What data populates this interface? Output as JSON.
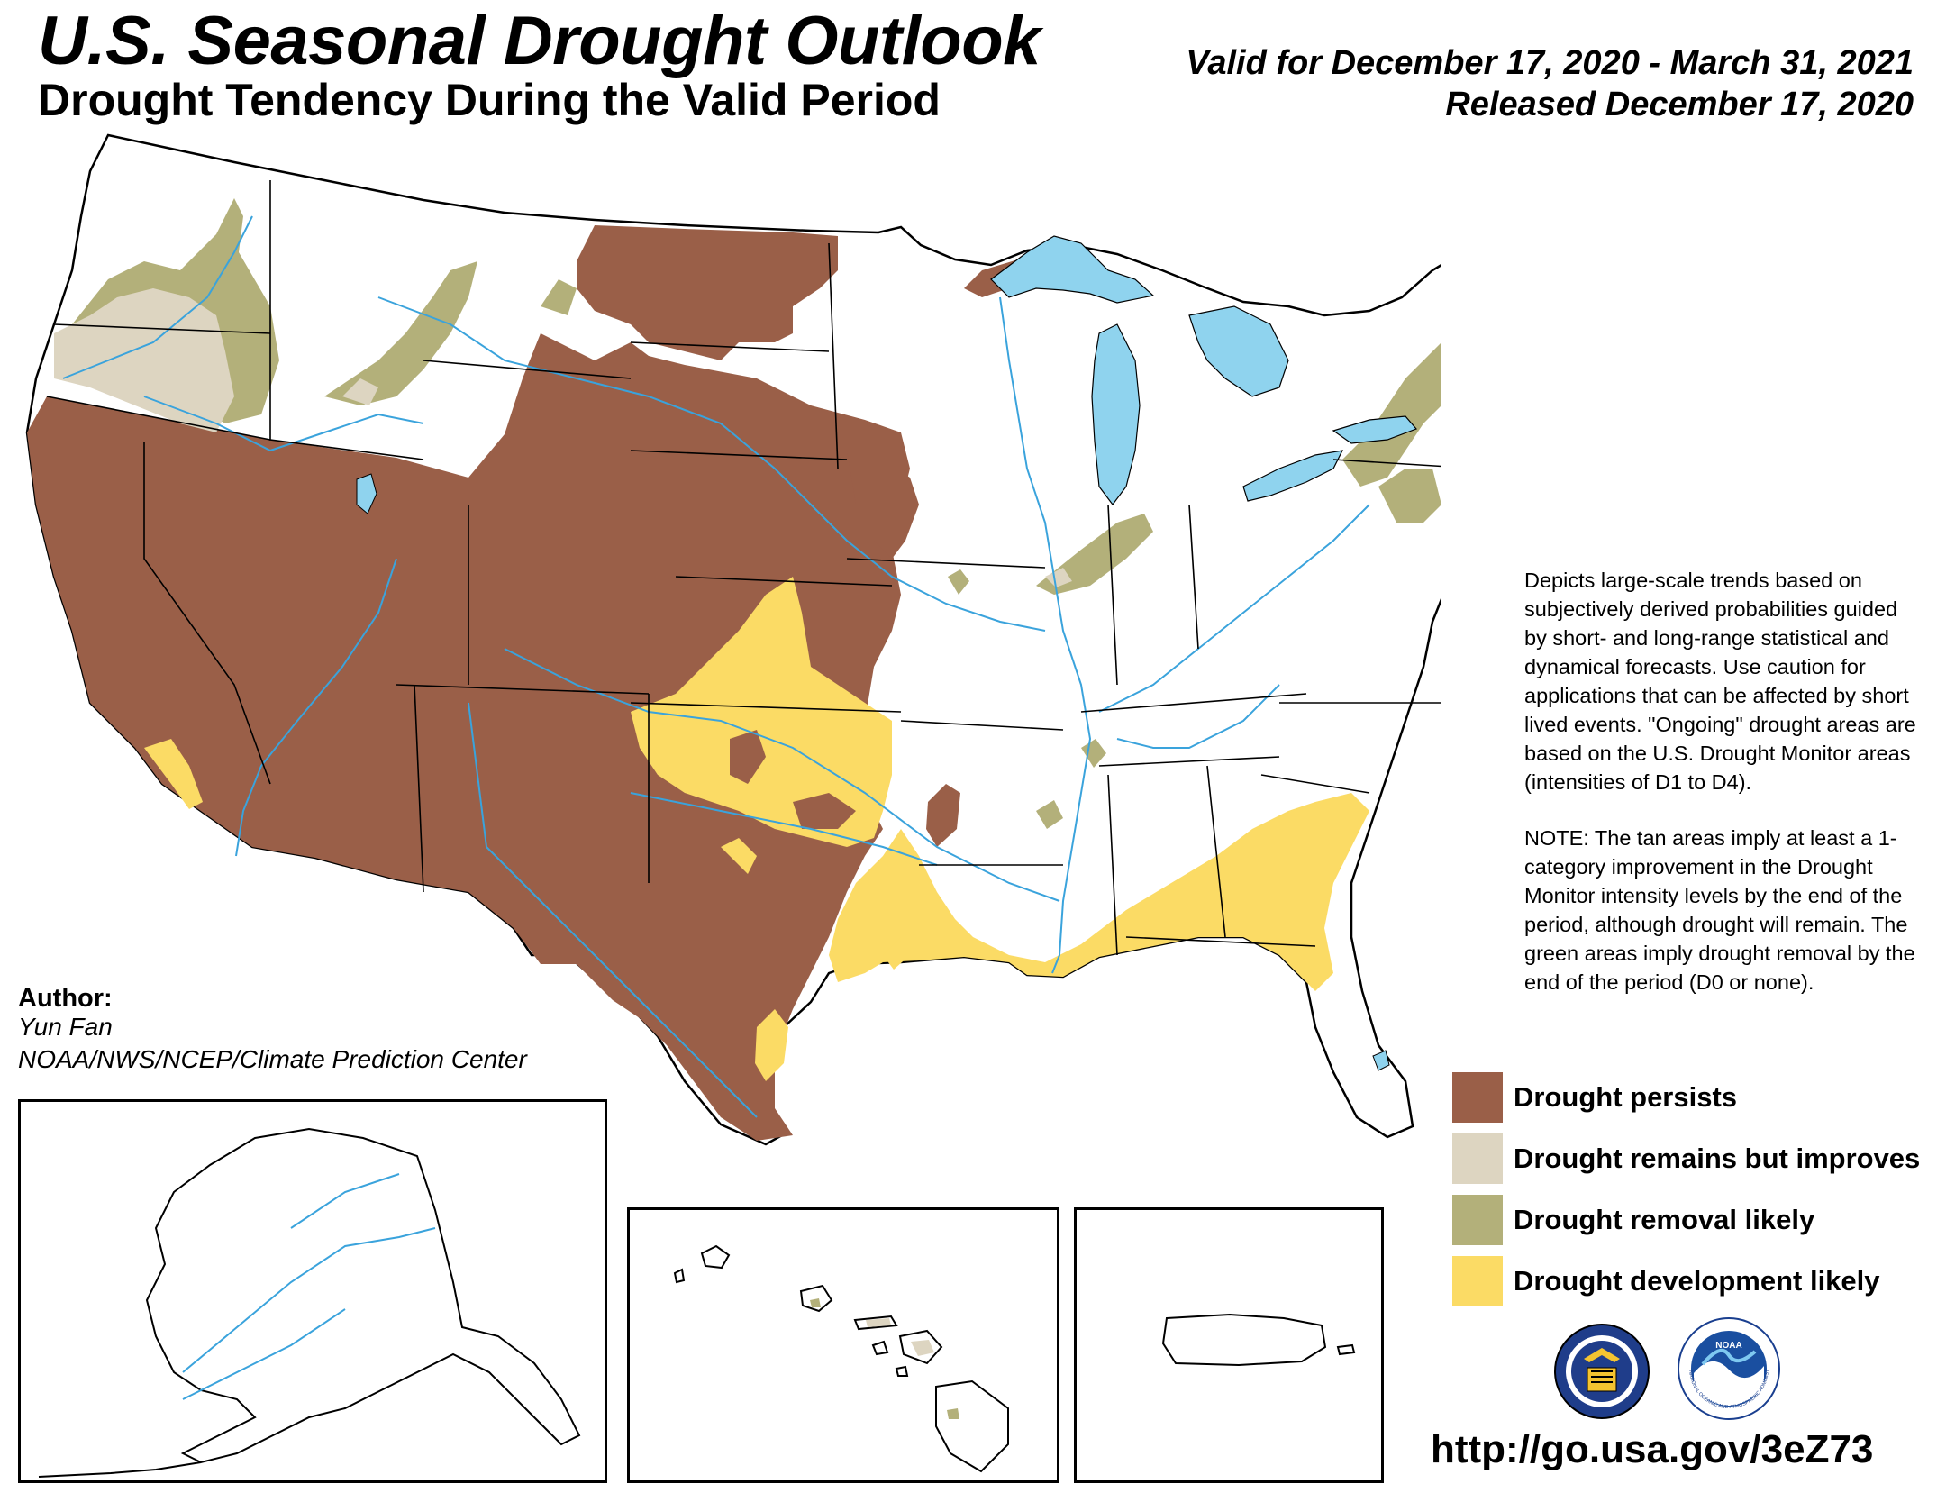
{
  "header": {
    "title": "U.S. Seasonal Drought Outlook",
    "subtitle": "Drought Tendency During the Valid Period",
    "valid": "Valid for December 17, 2020 - March 31, 2021",
    "released": "Released December 17, 2020"
  },
  "description": {
    "p1": "Depicts large-scale trends based on subjectively derived probabilities guided by short- and long-range statistical and dynamical forecasts. Use caution for applications that can be affected by short lived events. \"Ongoing\" drought areas are based on the U.S. Drought Monitor areas (intensities of D1 to D4).",
    "p2": "NOTE: The tan areas imply at least a 1-category improvement in the Drought Monitor intensity levels by the end of the period, although drought will remain. The green areas imply drought removal by the end of the period (D0 or none)."
  },
  "author": {
    "label": "Author:",
    "name": "Yun Fan",
    "org": "NOAA/NWS/NCEP/Climate Prediction Center"
  },
  "legend": [
    {
      "label": "Drought persists",
      "color": "#9a5f48"
    },
    {
      "label": "Drought remains but improves",
      "color": "#ddd5c1"
    },
    {
      "label": "Drought removal likely",
      "color": "#b3b07a"
    },
    {
      "label": "Drought development likely",
      "color": "#fbdb65"
    }
  ],
  "colors": {
    "lakes": "#8fd3ee",
    "rivers": "#3aa3dc",
    "borders": "#000000"
  },
  "icons": [
    "usda-seal-icon",
    "noaa-logo-icon"
  ],
  "logo_text": {
    "noaa_top": "NOAA",
    "noaa_bottom": "NATIONAL OCEANIC AND ATMOSPHERIC ADMINISTRATION"
  },
  "url": "http://go.usa.gov/3eZ73"
}
